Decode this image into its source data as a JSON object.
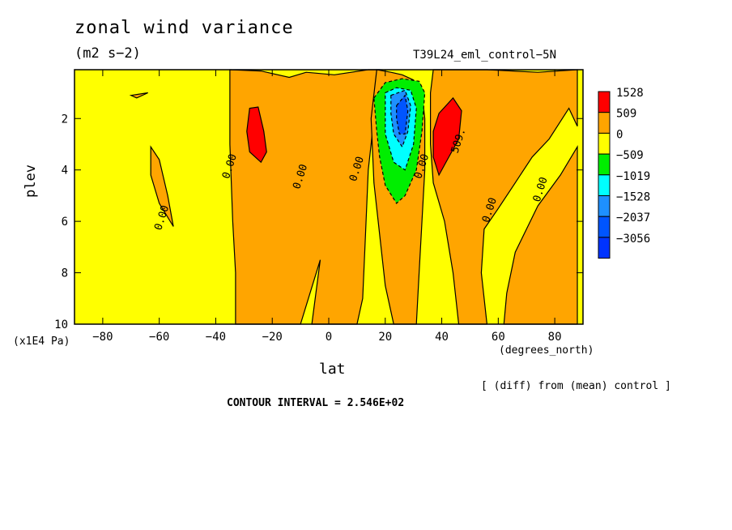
{
  "header": {
    "title": "zonal wind variance",
    "units": "(m2 s−2)",
    "run": "T39L24_eml_control−5N"
  },
  "footer": {
    "note": "[ (diff) from (mean) control ]",
    "contour_interval": "CONTOUR INTERVAL = 2.546E+02"
  },
  "chart_data": {
    "type": "heatmap",
    "title": "zonal wind variance",
    "xlabel": "lat",
    "xunit": "(degrees_north)",
    "ylabel": "plev",
    "yunit": "(x1E4 Pa)",
    "xlim": [
      -90,
      90
    ],
    "ylim": [
      10,
      0.1
    ],
    "x_ticks": [
      -80,
      -60,
      -40,
      -20,
      0,
      20,
      40,
      60,
      80
    ],
    "y_ticks": [
      2,
      4,
      6,
      8,
      10
    ],
    "legend": {
      "placement": "right",
      "levels": [
        "1528",
        "509",
        "0",
        "−509",
        "−1019",
        "−1528",
        "−2037",
        "−3056"
      ],
      "colors": [
        "#ff0000",
        "#ffa500",
        "#ffff00",
        "#00ee00",
        "#00ffff",
        "#1e90ff",
        "#0055ff",
        "#0033ff"
      ]
    },
    "contour_labels": [
      {
        "text": "0.00",
        "x": -58,
        "y": 5.9
      },
      {
        "text": "0.00",
        "x": -34,
        "y": 3.9
      },
      {
        "text": "0.00",
        "x": -9,
        "y": 4.3
      },
      {
        "text": "0.00",
        "x": 11,
        "y": 4.0
      },
      {
        "text": "0.00",
        "x": 34,
        "y": 3.9
      },
      {
        "text": "509.",
        "x": 47,
        "y": 2.9
      },
      {
        "text": "0.00",
        "x": 58,
        "y": 5.6
      },
      {
        "text": "0.00",
        "x": 76,
        "y": 4.8
      }
    ],
    "regions": [
      {
        "level": "509",
        "polygon": [
          [
            -35,
            0.1
          ],
          [
            -24,
            0.15
          ],
          [
            -14,
            0.4
          ],
          [
            -8,
            0.2
          ],
          [
            2,
            0.3
          ],
          [
            14,
            0.1
          ],
          [
            18,
            0.1
          ],
          [
            16,
            2.0
          ],
          [
            14,
            4.0
          ],
          [
            13,
            6.5
          ],
          [
            12,
            9.0
          ],
          [
            10,
            10
          ],
          [
            -6,
            10
          ],
          [
            -3,
            7.5
          ],
          [
            -10,
            10
          ],
          [
            -20,
            10
          ],
          [
            -25,
            10
          ],
          [
            -33,
            10
          ],
          [
            -33,
            8.0
          ],
          [
            -34,
            6.0
          ],
          [
            -35,
            3.0
          ]
        ]
      },
      {
        "level": "509",
        "polygon": [
          [
            -70,
            1.1
          ],
          [
            -64,
            1.0
          ],
          [
            -68,
            1.2
          ]
        ]
      },
      {
        "level": "509",
        "polygon": [
          [
            -63,
            3.1
          ],
          [
            -60,
            3.6
          ],
          [
            -57,
            5.0
          ],
          [
            -55,
            6.2
          ],
          [
            -60,
            5.3
          ],
          [
            -63,
            4.2
          ]
        ]
      },
      {
        "level": "509",
        "polygon": [
          [
            17,
            0.1
          ],
          [
            22,
            0.2
          ],
          [
            26,
            0.3
          ],
          [
            30,
            0.5
          ],
          [
            33,
            1.0
          ],
          [
            34,
            2.0
          ],
          [
            34,
            4.0
          ],
          [
            33,
            6.0
          ],
          [
            32,
            8.0
          ],
          [
            31,
            10
          ],
          [
            23,
            10
          ],
          [
            20,
            8.5
          ],
          [
            18,
            6.5
          ],
          [
            16,
            4.5
          ],
          [
            15,
            2.0
          ]
        ]
      },
      {
        "level": "509",
        "polygon": [
          [
            37,
            0.1
          ],
          [
            56,
            0.1
          ],
          [
            74,
            0.2
          ],
          [
            88,
            0.1
          ],
          [
            88,
            2.3
          ],
          [
            85,
            1.6
          ],
          [
            78,
            2.8
          ],
          [
            72,
            3.5
          ],
          [
            66,
            4.5
          ],
          [
            60,
            5.5
          ],
          [
            55,
            6.3
          ],
          [
            54,
            8.0
          ],
          [
            56,
            10
          ],
          [
            46,
            10
          ],
          [
            44,
            8.0
          ],
          [
            41,
            6.0
          ],
          [
            37,
            4.5
          ],
          [
            36,
            3.0
          ],
          [
            36,
            1.0
          ]
        ]
      },
      {
        "level": "509",
        "polygon": [
          [
            88,
            3.1
          ],
          [
            82,
            4.2
          ],
          [
            74,
            5.4
          ],
          [
            66,
            7.2
          ],
          [
            63,
            8.8
          ],
          [
            62,
            10
          ],
          [
            88,
            10
          ]
        ]
      },
      {
        "level": "1528",
        "polygon": [
          [
            -28,
            1.6
          ],
          [
            -25,
            1.55
          ],
          [
            -23,
            2.5
          ],
          [
            -22,
            3.3
          ],
          [
            -24,
            3.7
          ],
          [
            -28,
            3.3
          ],
          [
            -29,
            2.5
          ]
        ]
      },
      {
        "level": "1528",
        "polygon": [
          [
            39,
            1.8
          ],
          [
            44,
            1.2
          ],
          [
            47,
            1.7
          ],
          [
            46,
            2.8
          ],
          [
            42,
            3.6
          ],
          [
            39,
            4.2
          ],
          [
            37,
            3.5
          ],
          [
            37,
            2.5
          ]
        ]
      },
      {
        "level": "-509",
        "polygon": [
          [
            16,
            1.2
          ],
          [
            20,
            0.6
          ],
          [
            26,
            0.45
          ],
          [
            32,
            0.55
          ],
          [
            34,
            1.0
          ],
          [
            33,
            2.5
          ],
          [
            31,
            4.0
          ],
          [
            27,
            5.0
          ],
          [
            24,
            5.3
          ],
          [
            20,
            4.6
          ],
          [
            18,
            3.5
          ],
          [
            17,
            2.5
          ]
        ]
      },
      {
        "level": "-1019",
        "polygon": [
          [
            20,
            1.0
          ],
          [
            24,
            0.8
          ],
          [
            29,
            0.9
          ],
          [
            31,
            1.6
          ],
          [
            30,
            3.0
          ],
          [
            27,
            4.0
          ],
          [
            23,
            3.7
          ],
          [
            20,
            2.6
          ]
        ]
      },
      {
        "level": "-1528",
        "polygon": [
          [
            22,
            1.1
          ],
          [
            27,
            0.9
          ],
          [
            29,
            1.5
          ],
          [
            28,
            2.5
          ],
          [
            26,
            3.1
          ],
          [
            23,
            2.6
          ],
          [
            22,
            1.8
          ]
        ]
      },
      {
        "level": "-2037",
        "polygon": [
          [
            24,
            1.5
          ],
          [
            27,
            1.1
          ],
          [
            28,
            1.7
          ],
          [
            27,
            2.6
          ],
          [
            25,
            2.6
          ],
          [
            24,
            2.0
          ]
        ]
      }
    ]
  }
}
